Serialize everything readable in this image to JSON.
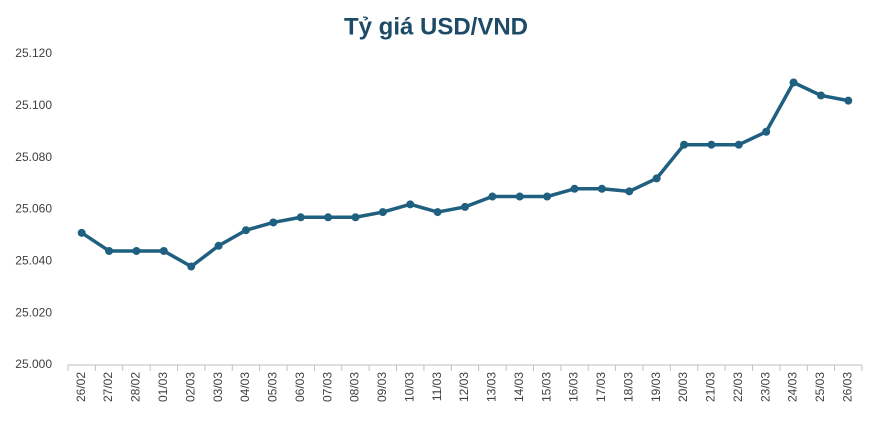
{
  "chart_data": {
    "type": "line",
    "title": "Tỷ giá USD/VND",
    "categories": [
      "26/02",
      "27/02",
      "28/02",
      "01/03",
      "02/03",
      "03/03",
      "04/03",
      "05/03",
      "06/03",
      "07/03",
      "08/03",
      "09/03",
      "10/03",
      "11/03",
      "12/03",
      "13/03",
      "14/03",
      "15/03",
      "16/03",
      "17/03",
      "18/03",
      "19/03",
      "20/03",
      "21/03",
      "22/03",
      "23/03",
      "24/03",
      "25/03",
      "26/03"
    ],
    "values": [
      25051,
      25044,
      25044,
      25044,
      25038,
      25046,
      25052,
      25055,
      25057,
      25057,
      25057,
      25059,
      25062,
      25059,
      25061,
      25065,
      25065,
      25065,
      25068,
      25068,
      25067,
      25072,
      25085,
      25085,
      25085,
      25090,
      25109,
      25104,
      25102
    ],
    "color": "#1f5f7f",
    "ylim": [
      25000,
      25120
    ],
    "yticks": [
      {
        "value": 25000,
        "label": "25.000"
      },
      {
        "value": 25020,
        "label": "25.020"
      },
      {
        "value": 25040,
        "label": "25.040"
      },
      {
        "value": 25060,
        "label": "25.060"
      },
      {
        "value": 25080,
        "label": "25.080"
      },
      {
        "value": 25100,
        "label": "25.100"
      },
      {
        "value": 25120,
        "label": "25.120"
      }
    ],
    "grid": false
  }
}
